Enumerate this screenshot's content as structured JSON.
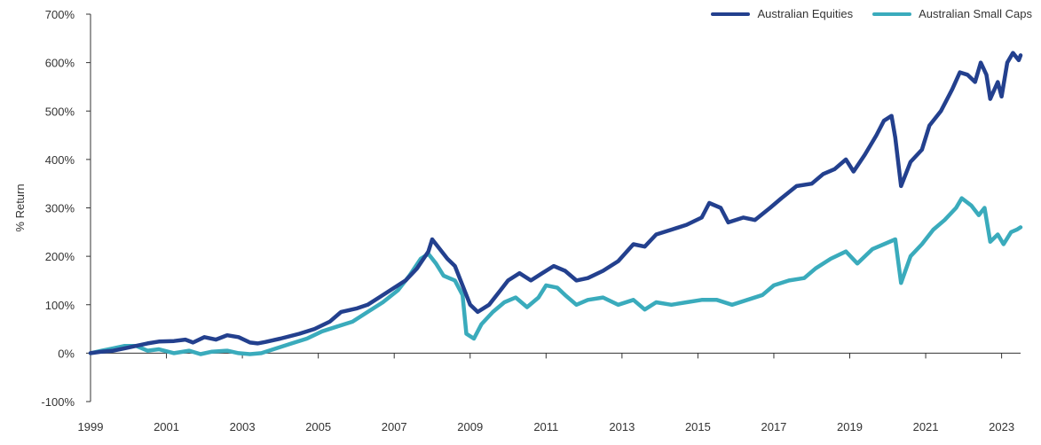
{
  "colors": {
    "equities": "#23408e",
    "small_caps": "#3aabbc",
    "axis": "#333333"
  },
  "chart_data": {
    "type": "line",
    "title": "",
    "xlabel": "",
    "ylabel": "% Return",
    "xlim": [
      1999,
      2023.5
    ],
    "ylim": [
      -100,
      700
    ],
    "y_ticks": [
      -100,
      0,
      100,
      200,
      300,
      400,
      500,
      600,
      700
    ],
    "y_tick_labels": [
      "-100%",
      "0%",
      "100%",
      "200%",
      "300%",
      "400%",
      "500%",
      "600%",
      "700%"
    ],
    "x_ticks": [
      1999,
      2001,
      2003,
      2005,
      2007,
      2009,
      2011,
      2013,
      2015,
      2017,
      2019,
      2021,
      2023
    ],
    "x_tick_labels": [
      "1999",
      "2001",
      "2003",
      "2005",
      "2007",
      "2009",
      "2011",
      "2013",
      "2015",
      "2017",
      "2019",
      "2021",
      "2023"
    ],
    "grid": false,
    "legend_position": "top-right",
    "series": [
      {
        "name": "Australian Equities",
        "points": [
          [
            1999.0,
            0
          ],
          [
            1999.3,
            3
          ],
          [
            1999.6,
            5
          ],
          [
            1999.9,
            10
          ],
          [
            2000.2,
            15
          ],
          [
            2000.5,
            20
          ],
          [
            2000.8,
            24
          ],
          [
            2001.2,
            25
          ],
          [
            2001.5,
            28
          ],
          [
            2001.7,
            22
          ],
          [
            2002.0,
            33
          ],
          [
            2002.3,
            28
          ],
          [
            2002.6,
            37
          ],
          [
            2002.9,
            33
          ],
          [
            2003.2,
            22
          ],
          [
            2003.4,
            20
          ],
          [
            2003.6,
            23
          ],
          [
            2004.0,
            30
          ],
          [
            2004.5,
            40
          ],
          [
            2004.9,
            50
          ],
          [
            2005.3,
            65
          ],
          [
            2005.6,
            85
          ],
          [
            2006.0,
            92
          ],
          [
            2006.3,
            100
          ],
          [
            2006.6,
            115
          ],
          [
            2006.9,
            130
          ],
          [
            2007.3,
            150
          ],
          [
            2007.6,
            175
          ],
          [
            2007.9,
            210
          ],
          [
            2008.0,
            235
          ],
          [
            2008.2,
            215
          ],
          [
            2008.4,
            195
          ],
          [
            2008.6,
            180
          ],
          [
            2008.8,
            140
          ],
          [
            2009.0,
            100
          ],
          [
            2009.2,
            85
          ],
          [
            2009.5,
            100
          ],
          [
            2009.8,
            130
          ],
          [
            2010.0,
            150
          ],
          [
            2010.3,
            165
          ],
          [
            2010.6,
            150
          ],
          [
            2010.9,
            165
          ],
          [
            2011.2,
            180
          ],
          [
            2011.5,
            170
          ],
          [
            2011.8,
            150
          ],
          [
            2012.1,
            155
          ],
          [
            2012.5,
            170
          ],
          [
            2012.9,
            190
          ],
          [
            2013.3,
            225
          ],
          [
            2013.6,
            220
          ],
          [
            2013.9,
            245
          ],
          [
            2014.3,
            255
          ],
          [
            2014.7,
            265
          ],
          [
            2015.1,
            280
          ],
          [
            2015.3,
            310
          ],
          [
            2015.6,
            300
          ],
          [
            2015.8,
            270
          ],
          [
            2016.2,
            280
          ],
          [
            2016.5,
            275
          ],
          [
            2016.9,
            300
          ],
          [
            2017.2,
            320
          ],
          [
            2017.6,
            345
          ],
          [
            2018.0,
            350
          ],
          [
            2018.3,
            370
          ],
          [
            2018.6,
            380
          ],
          [
            2018.9,
            400
          ],
          [
            2019.1,
            375
          ],
          [
            2019.4,
            410
          ],
          [
            2019.7,
            450
          ],
          [
            2019.9,
            480
          ],
          [
            2020.1,
            490
          ],
          [
            2020.2,
            445
          ],
          [
            2020.35,
            345
          ],
          [
            2020.6,
            395
          ],
          [
            2020.9,
            420
          ],
          [
            2021.1,
            470
          ],
          [
            2021.4,
            500
          ],
          [
            2021.7,
            545
          ],
          [
            2021.9,
            580
          ],
          [
            2022.1,
            575
          ],
          [
            2022.3,
            560
          ],
          [
            2022.45,
            600
          ],
          [
            2022.6,
            575
          ],
          [
            2022.7,
            525
          ],
          [
            2022.9,
            560
          ],
          [
            2023.0,
            530
          ],
          [
            2023.15,
            600
          ],
          [
            2023.3,
            620
          ],
          [
            2023.45,
            605
          ],
          [
            2023.5,
            615
          ]
        ]
      },
      {
        "name": "Australian Small Caps",
        "points": [
          [
            1999.0,
            0
          ],
          [
            1999.3,
            5
          ],
          [
            1999.6,
            10
          ],
          [
            1999.9,
            15
          ],
          [
            2000.2,
            15
          ],
          [
            2000.5,
            5
          ],
          [
            2000.8,
            8
          ],
          [
            2001.2,
            0
          ],
          [
            2001.6,
            5
          ],
          [
            2001.9,
            -2
          ],
          [
            2002.2,
            3
          ],
          [
            2002.6,
            5
          ],
          [
            2002.9,
            0
          ],
          [
            2003.2,
            -2
          ],
          [
            2003.5,
            0
          ],
          [
            2003.9,
            10
          ],
          [
            2004.3,
            20
          ],
          [
            2004.7,
            30
          ],
          [
            2005.1,
            45
          ],
          [
            2005.5,
            55
          ],
          [
            2005.9,
            65
          ],
          [
            2006.3,
            85
          ],
          [
            2006.7,
            105
          ],
          [
            2007.1,
            130
          ],
          [
            2007.4,
            160
          ],
          [
            2007.7,
            195
          ],
          [
            2007.9,
            205
          ],
          [
            2008.1,
            185
          ],
          [
            2008.3,
            160
          ],
          [
            2008.6,
            150
          ],
          [
            2008.8,
            120
          ],
          [
            2008.9,
            40
          ],
          [
            2009.1,
            30
          ],
          [
            2009.3,
            60
          ],
          [
            2009.6,
            85
          ],
          [
            2009.9,
            105
          ],
          [
            2010.2,
            115
          ],
          [
            2010.5,
            95
          ],
          [
            2010.8,
            115
          ],
          [
            2011.0,
            140
          ],
          [
            2011.3,
            135
          ],
          [
            2011.5,
            120
          ],
          [
            2011.8,
            100
          ],
          [
            2012.1,
            110
          ],
          [
            2012.5,
            115
          ],
          [
            2012.9,
            100
          ],
          [
            2013.3,
            110
          ],
          [
            2013.6,
            90
          ],
          [
            2013.9,
            105
          ],
          [
            2014.3,
            100
          ],
          [
            2014.7,
            105
          ],
          [
            2015.1,
            110
          ],
          [
            2015.5,
            110
          ],
          [
            2015.9,
            100
          ],
          [
            2016.3,
            110
          ],
          [
            2016.7,
            120
          ],
          [
            2017.0,
            140
          ],
          [
            2017.4,
            150
          ],
          [
            2017.8,
            155
          ],
          [
            2018.1,
            175
          ],
          [
            2018.5,
            195
          ],
          [
            2018.9,
            210
          ],
          [
            2019.2,
            185
          ],
          [
            2019.6,
            215
          ],
          [
            2019.9,
            225
          ],
          [
            2020.2,
            235
          ],
          [
            2020.35,
            145
          ],
          [
            2020.6,
            200
          ],
          [
            2020.9,
            225
          ],
          [
            2021.2,
            255
          ],
          [
            2021.5,
            275
          ],
          [
            2021.8,
            300
          ],
          [
            2021.95,
            320
          ],
          [
            2022.2,
            305
          ],
          [
            2022.4,
            285
          ],
          [
            2022.55,
            300
          ],
          [
            2022.7,
            230
          ],
          [
            2022.9,
            245
          ],
          [
            2023.05,
            225
          ],
          [
            2023.25,
            250
          ],
          [
            2023.4,
            255
          ],
          [
            2023.5,
            260
          ]
        ]
      }
    ]
  }
}
